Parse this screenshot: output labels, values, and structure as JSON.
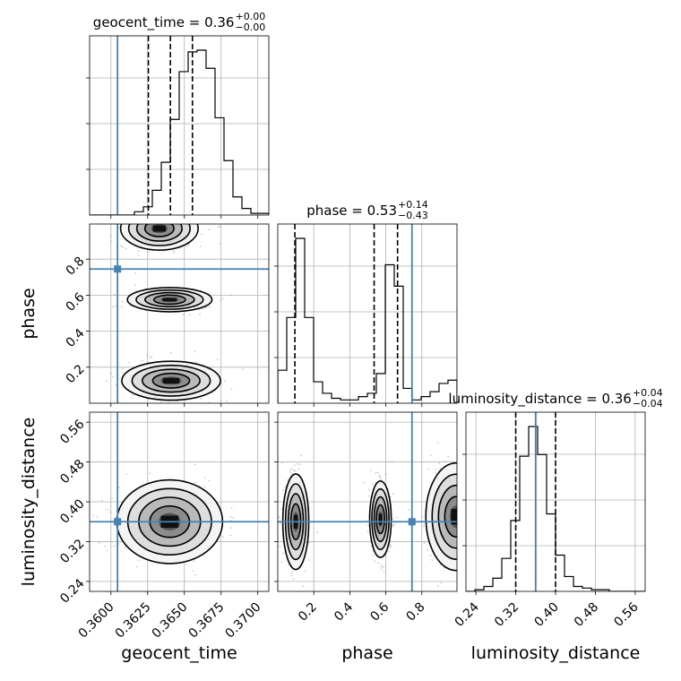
{
  "chart_data": {
    "type": "corner",
    "truth_color": "#4682b4",
    "parameters": [
      {
        "name": "geocent_time",
        "title_prefix": "geocent_time = 0.36",
        "title_plus": "+0.00",
        "title_minus": "−0.00",
        "range": [
          0.35855,
          0.37075
        ],
        "ticks": [
          0.36,
          0.3625,
          0.365,
          0.3675,
          0.37
        ],
        "tick_labels": [
          "0.3600",
          "0.3625",
          "0.3650",
          "0.3675",
          "0.3700"
        ],
        "truth": 0.36045,
        "quantiles": [
          0.36255,
          0.36405,
          0.36555
        ],
        "hist": [
          0,
          0,
          0,
          0,
          0,
          0.02,
          0.05,
          0.15,
          0.32,
          0.58,
          0.87,
          0.99,
          1.0,
          0.89,
          0.59,
          0.33,
          0.11,
          0.04,
          0.01,
          0.01
        ]
      },
      {
        "name": "phase",
        "title_prefix": "phase = 0.53",
        "title_plus": "+0.14",
        "title_minus": "−0.43",
        "range": [
          0.0,
          0.995
        ],
        "ticks": [
          0.2,
          0.4,
          0.6,
          0.8
        ],
        "tick_labels": [
          "0.2",
          "0.4",
          "0.6",
          "0.8"
        ],
        "truth": 0.745,
        "quantiles": [
          0.095,
          0.535,
          0.665
        ],
        "hist": [
          0.2,
          0.52,
          1.0,
          0.52,
          0.13,
          0.06,
          0.03,
          0.02,
          0.02,
          0.04,
          0.06,
          0.18,
          0.84,
          0.71,
          0.09,
          0.02,
          0.04,
          0.07,
          0.12,
          0.14
        ]
      },
      {
        "name": "luminosity_distance",
        "title_prefix": "luminosity_distance = 0.36",
        "title_plus": "+0.04",
        "title_minus": "−0.04",
        "range": [
          0.22,
          0.58
        ],
        "ticks": [
          0.24,
          0.32,
          0.4,
          0.48,
          0.56
        ],
        "tick_labels": [
          "0.24",
          "0.32",
          "0.40",
          "0.48",
          "0.56"
        ],
        "truth": 0.36,
        "quantiles": [
          0.32,
          0.36,
          0.4
        ],
        "hist": [
          0,
          0.01,
          0.03,
          0.08,
          0.2,
          0.43,
          0.82,
          1.0,
          0.83,
          0.47,
          0.22,
          0.09,
          0.03,
          0.02,
          0.01,
          0.01,
          0,
          0,
          0,
          0
        ]
      }
    ],
    "blobs": [
      {
        "x": 0,
        "y": 1,
        "cx": 0.364,
        "cy": 0.575,
        "sx": 0.0012,
        "sy": 0.028
      },
      {
        "x": 0,
        "y": 1,
        "cx": 0.3641,
        "cy": 0.125,
        "sx": 0.0014,
        "sy": 0.045
      },
      {
        "x": 0,
        "y": 1,
        "cx": 0.3633,
        "cy": 0.97,
        "sx": 0.0011,
        "sy": 0.05
      },
      {
        "x": 0,
        "y": 2,
        "cx": 0.364,
        "cy": 0.36,
        "sx": 0.0015,
        "sy": 0.035
      },
      {
        "x": 1,
        "y": 2,
        "cx": 0.1,
        "cy": 0.36,
        "sx": 0.03,
        "sy": 0.04
      },
      {
        "x": 1,
        "y": 2,
        "cx": 0.57,
        "cy": 0.365,
        "sx": 0.025,
        "sy": 0.032
      },
      {
        "x": 1,
        "y": 2,
        "cx": 0.99,
        "cy": 0.37,
        "sx": 0.07,
        "sy": 0.045
      }
    ]
  }
}
